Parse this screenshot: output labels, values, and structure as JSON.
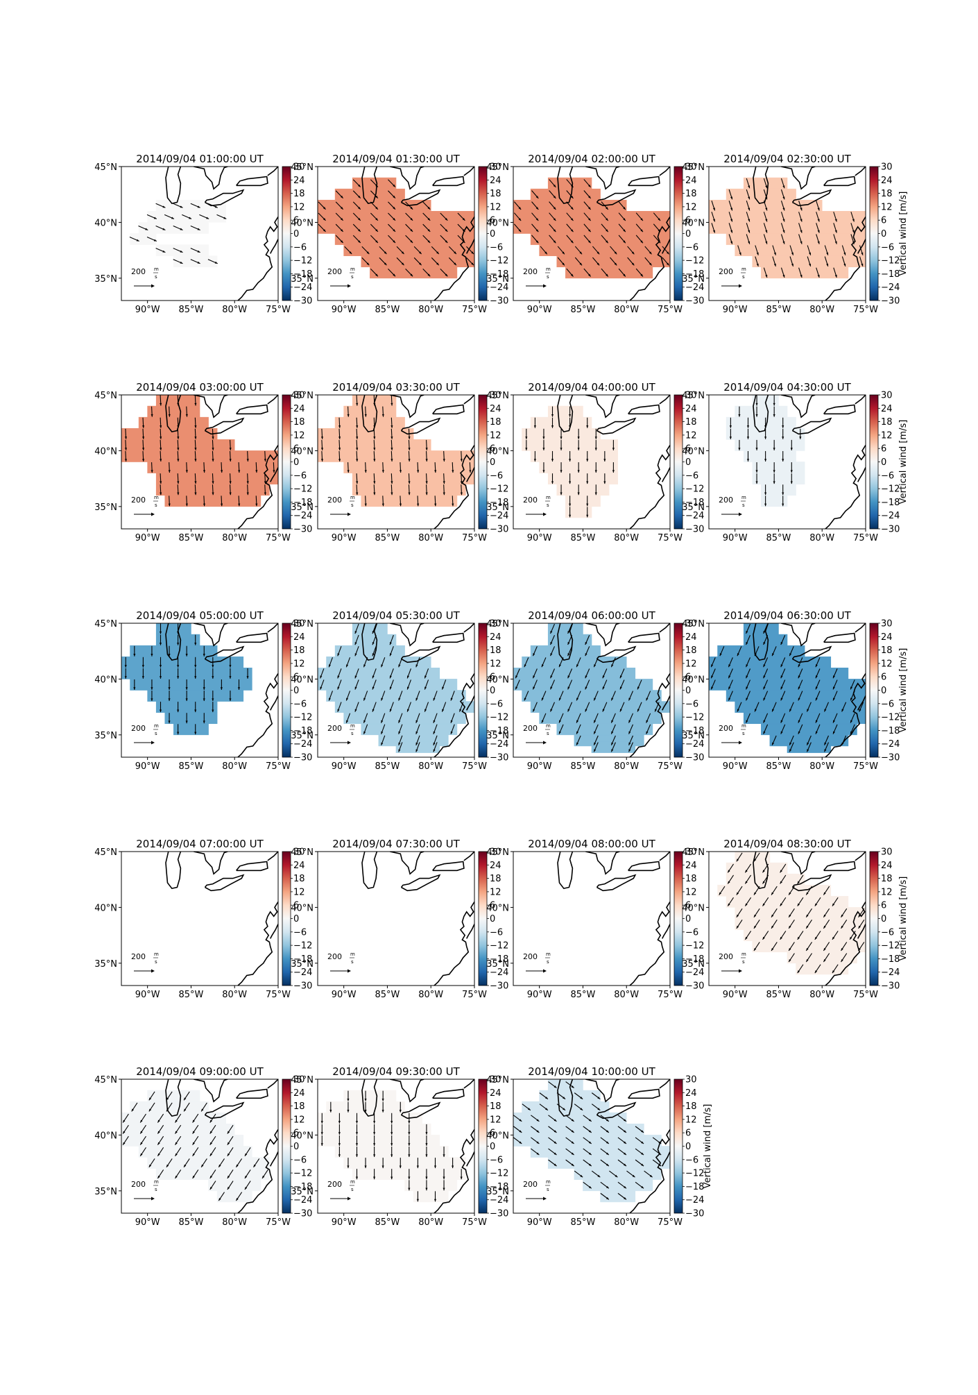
{
  "figure": {
    "coastline_color": "#000000",
    "axis_color": "#000000",
    "quiver_color": "#000000"
  },
  "chart_data": {
    "type": "heatmap",
    "layout": {
      "rows": 5,
      "cols": 4
    },
    "lon_ticks": [
      "90°W",
      "85°W",
      "80°W",
      "75°W"
    ],
    "lat_ticks": [
      "45°N",
      "40°N",
      "35°N"
    ],
    "lon_range": [
      -93,
      -75
    ],
    "lat_range": [
      33,
      45
    ],
    "colorbar": {
      "ticks": [
        30,
        24,
        18,
        12,
        6,
        0,
        -6,
        -12,
        -18,
        -24,
        -30
      ],
      "tick_labels": [
        "30",
        "24",
        "18",
        "12",
        "6",
        "0",
        "−6",
        "−12",
        "−18",
        "−24",
        "−30"
      ],
      "label": "Vertical wind [m/s]",
      "range": [
        -30,
        30
      ],
      "colormap": "RdBu_r",
      "colormap_stops": [
        "#053061",
        "#2166ac",
        "#4393c3",
        "#92c5de",
        "#d1e5f0",
        "#f7f7f7",
        "#fddbc7",
        "#f4a582",
        "#d6604d",
        "#b2182b",
        "#67001f"
      ]
    },
    "quiver_key": {
      "value": "200",
      "unit_num": "m",
      "unit_den": "s"
    },
    "panels": [
      {
        "title": "2014/09/04 01:00:00 UT",
        "vertical_wind": 0,
        "wind_dir": [
          0.92,
          0.4
        ],
        "region": "r1",
        "show_colorbar_label": false
      },
      {
        "title": "2014/09/04 01:30:00 UT",
        "vertical_wind": 14,
        "wind_dir": [
          0.7,
          0.72
        ],
        "region": "r2",
        "show_colorbar_label": false
      },
      {
        "title": "2014/09/04 02:00:00 UT",
        "vertical_wind": 14,
        "wind_dir": [
          0.65,
          0.76
        ],
        "region": "r2",
        "show_colorbar_label": false
      },
      {
        "title": "2014/09/04 02:30:00 UT",
        "vertical_wind": 8,
        "wind_dir": [
          0.3,
          0.95
        ],
        "region": "r2",
        "show_colorbar_label": true
      },
      {
        "title": "2014/09/04 03:00:00 UT",
        "vertical_wind": 14,
        "wind_dir": [
          0.05,
          1.0
        ],
        "region": "r3",
        "show_colorbar_label": false
      },
      {
        "title": "2014/09/04 03:30:00 UT",
        "vertical_wind": 9,
        "wind_dir": [
          0.05,
          1.0
        ],
        "region": "r3",
        "show_colorbar_label": false
      },
      {
        "title": "2014/09/04 04:00:00 UT",
        "vertical_wind": 3,
        "wind_dir": [
          0.0,
          1.0
        ],
        "region": "r4",
        "show_colorbar_label": false
      },
      {
        "title": "2014/09/04 04:30:00 UT",
        "vertical_wind": -2,
        "wind_dir": [
          0.0,
          1.0
        ],
        "region": "r5",
        "show_colorbar_label": true
      },
      {
        "title": "2014/09/04 05:00:00 UT",
        "vertical_wind": -16,
        "wind_dir": [
          0.0,
          1.0
        ],
        "region": "r6",
        "show_colorbar_label": false
      },
      {
        "title": "2014/09/04 05:30:00 UT",
        "vertical_wind": -10,
        "wind_dir": [
          -0.35,
          0.94
        ],
        "region": "r7",
        "show_colorbar_label": false
      },
      {
        "title": "2014/09/04 06:00:00 UT",
        "vertical_wind": -13,
        "wind_dir": [
          -0.4,
          0.92
        ],
        "region": "r7",
        "show_colorbar_label": false
      },
      {
        "title": "2014/09/04 06:30:00 UT",
        "vertical_wind": -17,
        "wind_dir": [
          -0.4,
          0.92
        ],
        "region": "r8",
        "show_colorbar_label": true
      },
      {
        "title": "2014/09/04 07:00:00 UT",
        "vertical_wind": null,
        "wind_dir": [
          0,
          0
        ],
        "region": "none",
        "show_colorbar_label": false
      },
      {
        "title": "2014/09/04 07:30:00 UT",
        "vertical_wind": null,
        "wind_dir": [
          0,
          0
        ],
        "region": "none",
        "show_colorbar_label": false
      },
      {
        "title": "2014/09/04 08:00:00 UT",
        "vertical_wind": null,
        "wind_dir": [
          0,
          0
        ],
        "region": "none",
        "show_colorbar_label": false
      },
      {
        "title": "2014/09/04 08:30:00 UT",
        "vertical_wind": 2,
        "wind_dir": [
          -0.55,
          0.83
        ],
        "region": "r9",
        "show_colorbar_label": true
      },
      {
        "title": "2014/09/04 09:00:00 UT",
        "vertical_wind": -1,
        "wind_dir": [
          -0.55,
          0.83
        ],
        "region": "r10",
        "show_colorbar_label": false
      },
      {
        "title": "2014/09/04 09:30:00 UT",
        "vertical_wind": 0.5,
        "wind_dir": [
          0.0,
          1.0
        ],
        "region": "r10",
        "show_colorbar_label": false
      },
      {
        "title": "2014/09/04 10:00:00 UT",
        "vertical_wind": -6,
        "wind_dir": [
          0.8,
          0.6
        ],
        "region": "r11",
        "show_colorbar_label": true
      }
    ]
  }
}
